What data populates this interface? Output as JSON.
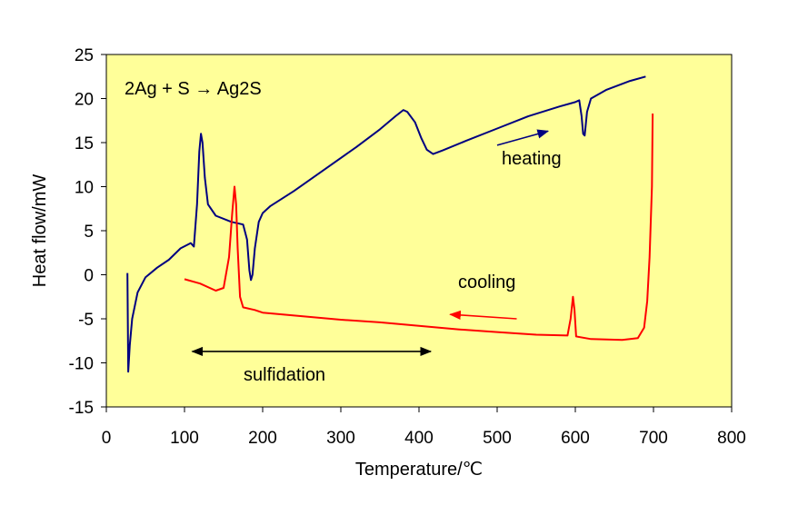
{
  "chart_data": {
    "type": "line",
    "xlabel": "Temperature/℃",
    "ylabel": "Heat flow/mW",
    "xlim": [
      0,
      800
    ],
    "ylim": [
      -15,
      25
    ],
    "x_ticks": [
      "0",
      "100",
      "200",
      "300",
      "400",
      "500",
      "600",
      "700",
      "800"
    ],
    "y_ticks": [
      "25",
      "20",
      "15",
      "10",
      "5",
      "0",
      "-5",
      "-10",
      "-15"
    ],
    "grid": false,
    "plot_background": "#ffff99",
    "series": [
      {
        "name": "heating",
        "color": "#000080",
        "points": [
          [
            27,
            0.2
          ],
          [
            28,
            -11
          ],
          [
            30,
            -8
          ],
          [
            33,
            -5
          ],
          [
            40,
            -2
          ],
          [
            50,
            -0.3
          ],
          [
            65,
            0.8
          ],
          [
            80,
            1.7
          ],
          [
            95,
            3
          ],
          [
            108,
            3.6
          ],
          [
            112,
            3.2
          ],
          [
            116,
            8
          ],
          [
            119,
            14
          ],
          [
            121,
            16
          ],
          [
            123,
            15
          ],
          [
            126,
            11
          ],
          [
            130,
            8
          ],
          [
            140,
            6.7
          ],
          [
            160,
            6
          ],
          [
            175,
            5.7
          ],
          [
            180,
            4
          ],
          [
            183,
            0.5
          ],
          [
            185,
            -0.6
          ],
          [
            187,
            0
          ],
          [
            190,
            3
          ],
          [
            195,
            6
          ],
          [
            200,
            7
          ],
          [
            210,
            7.8
          ],
          [
            240,
            9.5
          ],
          [
            280,
            12
          ],
          [
            320,
            14.5
          ],
          [
            350,
            16.5
          ],
          [
            370,
            18
          ],
          [
            380,
            18.7
          ],
          [
            385,
            18.5
          ],
          [
            395,
            17.3
          ],
          [
            403,
            15.5
          ],
          [
            410,
            14.2
          ],
          [
            418,
            13.7
          ],
          [
            430,
            14.1
          ],
          [
            460,
            15.2
          ],
          [
            500,
            16.6
          ],
          [
            540,
            18
          ],
          [
            580,
            19.1
          ],
          [
            600,
            19.6
          ],
          [
            605,
            19.8
          ],
          [
            608,
            18
          ],
          [
            610,
            16
          ],
          [
            612,
            15.8
          ],
          [
            615,
            18.5
          ],
          [
            620,
            20
          ],
          [
            640,
            21
          ],
          [
            670,
            22
          ],
          [
            690,
            22.5
          ]
        ]
      },
      {
        "name": "cooling",
        "color": "#ff0000",
        "points": [
          [
            100,
            -0.5
          ],
          [
            120,
            -1
          ],
          [
            140,
            -1.8
          ],
          [
            150,
            -1.5
          ],
          [
            157,
            2
          ],
          [
            161,
            7
          ],
          [
            164,
            10
          ],
          [
            166,
            8
          ],
          [
            168,
            3
          ],
          [
            171,
            -2.5
          ],
          [
            175,
            -3.7
          ],
          [
            190,
            -4
          ],
          [
            200,
            -4.3
          ],
          [
            250,
            -4.7
          ],
          [
            300,
            -5.1
          ],
          [
            350,
            -5.4
          ],
          [
            400,
            -5.8
          ],
          [
            450,
            -6.2
          ],
          [
            500,
            -6.5
          ],
          [
            550,
            -6.8
          ],
          [
            590,
            -6.9
          ],
          [
            594,
            -5
          ],
          [
            597,
            -2.5
          ],
          [
            599,
            -4
          ],
          [
            601,
            -7
          ],
          [
            620,
            -7.3
          ],
          [
            660,
            -7.4
          ],
          [
            680,
            -7.2
          ],
          [
            688,
            -6
          ],
          [
            692,
            -3
          ],
          [
            695,
            2
          ],
          [
            698,
            10
          ],
          [
            699,
            18.3
          ]
        ]
      }
    ],
    "annotations": {
      "reaction": "2Ag + S → Ag2S",
      "heating_label": "heating",
      "cooling_label": "cooling",
      "sulfidation_label": "sulfidation"
    },
    "arrows": [
      {
        "name": "heating-arrow",
        "from": [
          500,
          14.7
        ],
        "to": [
          565,
          16.3
        ],
        "color": "#000080",
        "heads": "end"
      },
      {
        "name": "cooling-arrow",
        "from": [
          525,
          -5
        ],
        "to": [
          440,
          -4.5
        ],
        "color": "#ff0000",
        "heads": "end"
      },
      {
        "name": "sulfidation-arrow",
        "from": [
          110,
          -8.7
        ],
        "to": [
          415,
          -8.7
        ],
        "color": "#000000",
        "heads": "both"
      }
    ]
  }
}
